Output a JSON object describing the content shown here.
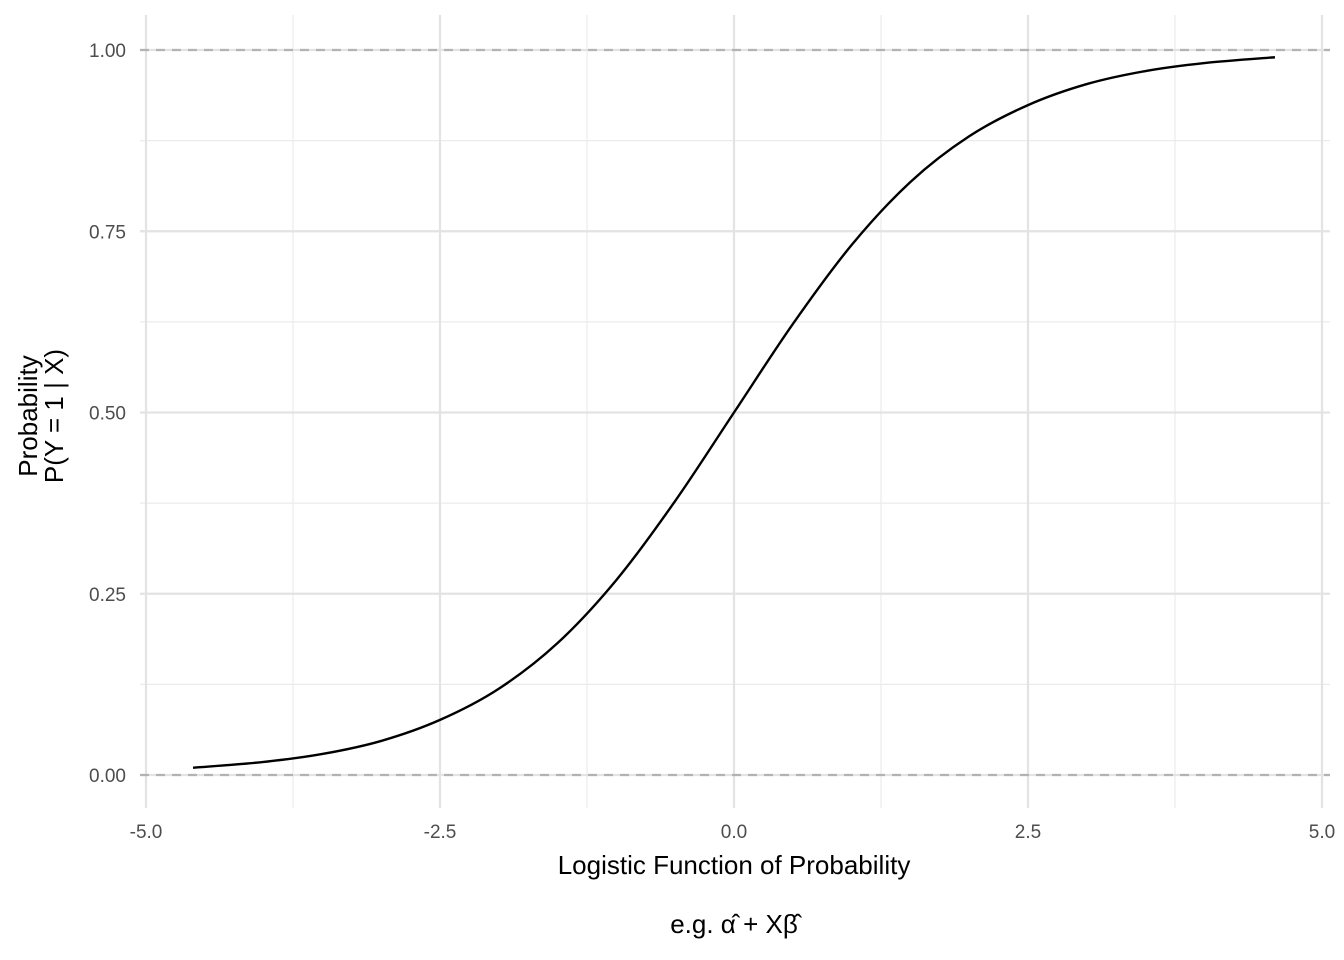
{
  "chart_data": {
    "type": "line",
    "title": "",
    "xlabel": "Logistic Function of Probability",
    "xlabel_sub": "e.g. α̂ + Xβ̂",
    "ylabel_line1": "Probability",
    "ylabel_line2": "P(Y = 1 | X)",
    "xlim": [
      -5.0,
      5.0
    ],
    "ylim": [
      0.0,
      1.0
    ],
    "x_ticks": [
      -5.0,
      -2.5,
      0.0,
      2.5,
      5.0
    ],
    "x_tick_labels": [
      "-5.0",
      "-2.5",
      "0.0",
      "2.5",
      "5.0"
    ],
    "y_ticks": [
      0.0,
      0.25,
      0.5,
      0.75,
      1.0
    ],
    "y_tick_labels": [
      "0.00",
      "0.25",
      "0.50",
      "0.75",
      "1.00"
    ],
    "grid": true,
    "reference_lines": [
      {
        "axis": "y",
        "value": 0.0,
        "style": "dashed",
        "color": "#b3b3b3"
      },
      {
        "axis": "y",
        "value": 1.0,
        "style": "dashed",
        "color": "#b3b3b3"
      }
    ],
    "series": [
      {
        "x": [
          -4.6,
          -4.0,
          -3.5,
          -3.0,
          -2.5,
          -2.0,
          -1.5,
          -1.0,
          -0.5,
          0.0,
          0.5,
          1.0,
          1.5,
          2.0,
          2.5,
          3.0,
          3.5,
          4.0,
          4.6
        ],
        "y": [
          0.01,
          0.018,
          0.029,
          0.047,
          0.076,
          0.119,
          0.182,
          0.269,
          0.378,
          0.5,
          0.622,
          0.731,
          0.818,
          0.881,
          0.924,
          0.953,
          0.971,
          0.982,
          0.99
        ],
        "color": "#000000"
      }
    ]
  }
}
